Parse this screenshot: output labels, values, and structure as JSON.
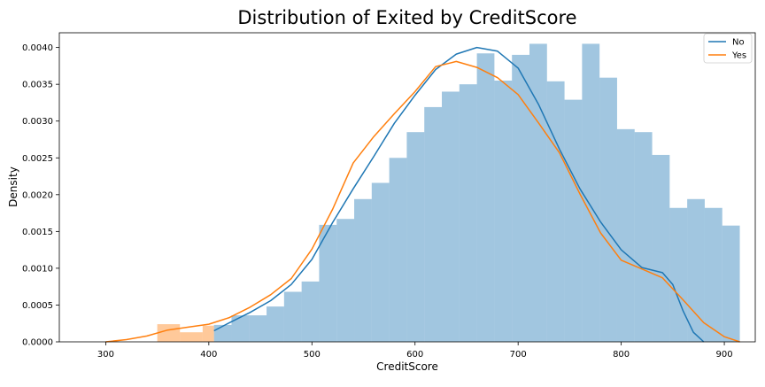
{
  "chart_data": {
    "type": "histogram-kde",
    "title": "Distribution of Exited by CreditScore",
    "xlabel": "CreditScore",
    "ylabel": "Density",
    "xlim": [
      255,
      930
    ],
    "ylim": [
      0,
      0.0042
    ],
    "xticks": [
      300,
      400,
      500,
      600,
      700,
      800,
      900
    ],
    "yticks": [
      0.0,
      0.0005,
      0.001,
      0.0015,
      0.002,
      0.0025,
      0.003,
      0.0035,
      0.004
    ],
    "ytick_labels": [
      "0.0000",
      "0.0005",
      "0.0010",
      "0.0015",
      "0.0020",
      "0.0025",
      "0.0030",
      "0.0035",
      "0.0040"
    ],
    "legend_position": "top-right",
    "grid": false,
    "series": [
      {
        "name": "No",
        "color": "#1f77b4",
        "bar_color": "#9ec4e0",
        "bins": [
          {
            "x0": 405,
            "x1": 422,
            "y": 0.00023
          },
          {
            "x0": 422,
            "x1": 439,
            "y": 0.00036
          },
          {
            "x0": 439,
            "x1": 456,
            "y": 0.00036
          },
          {
            "x0": 456,
            "x1": 473,
            "y": 0.00048
          },
          {
            "x0": 473,
            "x1": 490,
            "y": 0.00068
          },
          {
            "x0": 490,
            "x1": 507,
            "y": 0.00082
          },
          {
            "x0": 507,
            "x1": 524,
            "y": 0.00159
          },
          {
            "x0": 524,
            "x1": 541,
            "y": 0.00167
          },
          {
            "x0": 541,
            "x1": 558,
            "y": 0.00194
          },
          {
            "x0": 558,
            "x1": 575,
            "y": 0.00216
          },
          {
            "x0": 575,
            "x1": 592,
            "y": 0.0025
          },
          {
            "x0": 592,
            "x1": 609,
            "y": 0.00285
          },
          {
            "x0": 609,
            "x1": 626,
            "y": 0.00319
          },
          {
            "x0": 626,
            "x1": 643,
            "y": 0.0034
          },
          {
            "x0": 643,
            "x1": 660,
            "y": 0.0035
          },
          {
            "x0": 660,
            "x1": 677,
            "y": 0.00392
          },
          {
            "x0": 677,
            "x1": 694,
            "y": 0.00355
          },
          {
            "x0": 694,
            "x1": 711,
            "y": 0.0039
          },
          {
            "x0": 711,
            "x1": 728,
            "y": 0.00405
          },
          {
            "x0": 728,
            "x1": 745,
            "y": 0.00354
          },
          {
            "x0": 745,
            "x1": 762,
            "y": 0.00329
          },
          {
            "x0": 762,
            "x1": 779,
            "y": 0.00405
          },
          {
            "x0": 779,
            "x1": 796,
            "y": 0.00359
          },
          {
            "x0": 796,
            "x1": 813,
            "y": 0.00289
          },
          {
            "x0": 813,
            "x1": 830,
            "y": 0.00285
          },
          {
            "x0": 830,
            "x1": 847,
            "y": 0.00254
          },
          {
            "x0": 847,
            "x1": 864,
            "y": 0.00182
          },
          {
            "x0": 864,
            "x1": 881,
            "y": 0.00194
          },
          {
            "x0": 881,
            "x1": 898,
            "y": 0.00182
          },
          {
            "x0": 898,
            "x1": 915,
            "y": 0.00158
          }
        ]
      },
      {
        "name": "Yes",
        "color": "#ff7f0e",
        "bar_color": "#ffc28f",
        "bins": [
          {
            "x0": 350,
            "x1": 372,
            "y": 0.00024
          },
          {
            "x0": 372,
            "x1": 394,
            "y": 0.00013
          },
          {
            "x0": 394,
            "x1": 405,
            "y": 0.00022
          }
        ]
      }
    ],
    "kde": [
      {
        "name": "No",
        "x": [
          405,
          420,
          440,
          460,
          480,
          500,
          520,
          540,
          560,
          580,
          600,
          620,
          640,
          660,
          680,
          700,
          720,
          740,
          760,
          780,
          800,
          820,
          840,
          850,
          860,
          870,
          880
        ],
        "y": [
          0.00015,
          0.00026,
          0.0004,
          0.00056,
          0.00078,
          0.00112,
          0.00162,
          0.00208,
          0.00252,
          0.00297,
          0.00335,
          0.0037,
          0.00391,
          0.004,
          0.00395,
          0.00372,
          0.00322,
          0.00262,
          0.00208,
          0.00163,
          0.00125,
          0.00101,
          0.00094,
          0.00078,
          0.00042,
          0.00013,
          0.0
        ]
      },
      {
        "name": "Yes",
        "x": [
          300,
          320,
          340,
          360,
          380,
          400,
          420,
          440,
          460,
          480,
          500,
          520,
          540,
          560,
          580,
          600,
          620,
          640,
          660,
          680,
          700,
          720,
          740,
          760,
          780,
          800,
          820,
          840,
          860,
          880,
          900,
          915
        ],
        "y": [
          0.0,
          3e-05,
          8e-05,
          0.00016,
          0.0002,
          0.00024,
          0.00033,
          0.00047,
          0.00064,
          0.00086,
          0.00126,
          0.0018,
          0.00243,
          0.00279,
          0.0031,
          0.0034,
          0.00374,
          0.00381,
          0.00373,
          0.00359,
          0.00336,
          0.00297,
          0.00257,
          0.00201,
          0.00148,
          0.00111,
          0.00099,
          0.00087,
          0.00057,
          0.00026,
          7e-05,
          0.0
        ]
      }
    ]
  }
}
